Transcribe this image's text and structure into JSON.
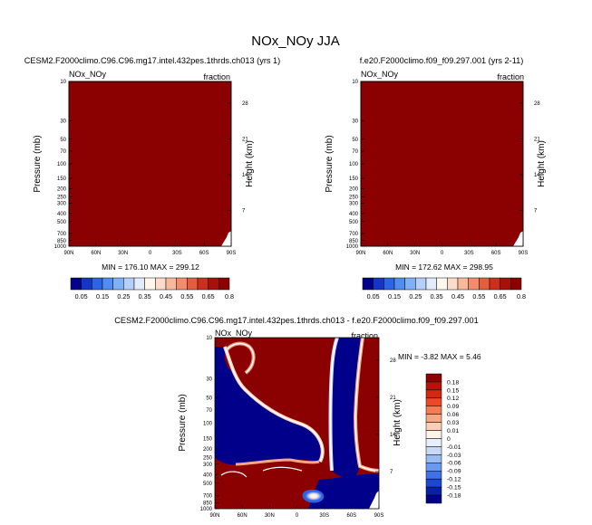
{
  "main_title": "NOx_NOy JJA",
  "chart_data": [
    {
      "type": "heatmap",
      "id": "top-left",
      "run_title": "CESM2.F2000climo.C96.C96.mg17.intel.432pes.1thrds.ch013 (yrs 1)",
      "var_label": "NOx_NOy",
      "units_label": "fraction",
      "ylabel": "Pressure (mb)",
      "ylabel_right": "Height (km)",
      "x_ticks": [
        "90N",
        "60N",
        "30N",
        "0",
        "30S",
        "60S",
        "90S"
      ],
      "y_ticks": [
        "10",
        "30",
        "50",
        "70",
        "100",
        "150",
        "200",
        "250",
        "300",
        "400",
        "500",
        "700",
        "850",
        "1000"
      ],
      "height_ticks": [
        "28",
        "21",
        "14",
        "7"
      ],
      "stats_text": "MIN = 176.10  MAX = 299.12",
      "min": 176.1,
      "max": 299.12,
      "fill_color": "#8b0000"
    },
    {
      "type": "heatmap",
      "id": "top-right",
      "run_title": "f.e20.F2000climo.f09_f09.297.001 (yrs 2-11)",
      "var_label": "NOx_NOy",
      "units_label": "fraction",
      "ylabel": "Pressure (mb)",
      "ylabel_right": "Height (km)",
      "x_ticks": [
        "90N",
        "60N",
        "30N",
        "0",
        "30S",
        "60S",
        "90S"
      ],
      "y_ticks": [
        "10",
        "30",
        "50",
        "70",
        "100",
        "150",
        "200",
        "250",
        "300",
        "400",
        "500",
        "700",
        "850",
        "1000"
      ],
      "height_ticks": [
        "28",
        "21",
        "14",
        "7"
      ],
      "stats_text": "MIN = 172.62  MAX = 298.95",
      "min": 172.62,
      "max": 298.95,
      "fill_color": "#8b0000"
    },
    {
      "type": "heatmap",
      "id": "difference",
      "run_title": "CESM2.F2000climo.C96.C96.mg17.intel.432pes.1thrds.ch013 - f.e20.F2000climo.f09_f09.297.001",
      "var_label": "NOx_NOy",
      "units_label": "fraction",
      "ylabel": "Pressure (mb)",
      "ylabel_right": "Height (km)",
      "x_ticks": [
        "90N",
        "60N",
        "30N",
        "0",
        "30S",
        "60S",
        "90S"
      ],
      "y_ticks": [
        "10",
        "30",
        "50",
        "70",
        "100",
        "150",
        "200",
        "250",
        "300",
        "400",
        "500",
        "700",
        "850",
        "1000"
      ],
      "height_ticks": [
        "28",
        "21",
        "14",
        "7"
      ],
      "stats_text": "MIN =  -3.82  MAX =   5.46",
      "min": -3.82,
      "max": 5.46
    }
  ],
  "colorbar_top": {
    "labels": [
      "0.05",
      "0.15",
      "0.25",
      "0.35",
      "0.45",
      "0.55",
      "0.65",
      "0.8"
    ],
    "colors": [
      "#00008b",
      "#1436c8",
      "#2d64e6",
      "#4f8ef0",
      "#7fb0f5",
      "#b4d0f8",
      "#e2ecfb",
      "#fff7ec",
      "#fcdcc8",
      "#f9b89a",
      "#f28c6c",
      "#e65c3f",
      "#cf2e1c",
      "#a8100c",
      "#8b0000"
    ]
  },
  "colorbar_diff": {
    "labels": [
      "0.18",
      "0.15",
      "0.12",
      "0.09",
      "0.06",
      "0.03",
      "0.01",
      "0",
      "-0.01",
      "-0.03",
      "-0.06",
      "-0.09",
      "-0.12",
      "-0.15",
      "-0.18"
    ],
    "colors": [
      "#8b0000",
      "#b51209",
      "#d42812",
      "#ec4a26",
      "#f47c54",
      "#f7a883",
      "#fbcfb6",
      "#fff3ea",
      "#e8eefa",
      "#c8d9f6",
      "#98bcf1",
      "#6a9af0",
      "#3e72e8",
      "#1c48d0",
      "#0820a8",
      "#00008b"
    ]
  }
}
